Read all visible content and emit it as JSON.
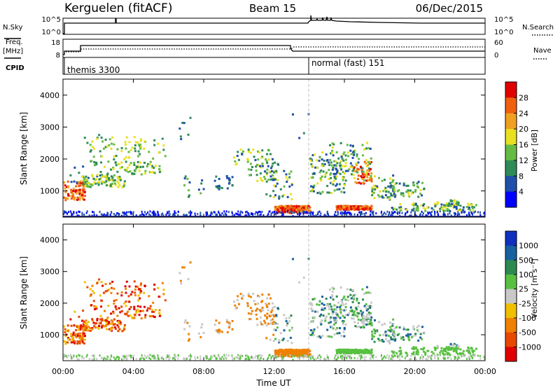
{
  "header": {
    "station": "Kerguelen (fitACF)",
    "beam": "Beam 15",
    "date": "06/Dec/2015"
  },
  "panel_labels": {
    "nsky": "N.Sky",
    "nsearch": "N.Search",
    "freq_top": "Freq.",
    "freq_unit": "[MHz]",
    "nave": "Nave",
    "cpid": "CPID",
    "nsky_ticks": [
      "10^5",
      "10^0"
    ],
    "nsearch_ticks": [
      "10^5",
      "10^0"
    ],
    "freq_ticks": [
      "18",
      "8"
    ],
    "nave_ticks": [
      "60",
      "0"
    ]
  },
  "cpid_modes": [
    {
      "label": "themis 3300",
      "start_hour": 0
    },
    {
      "label": "normal (fast) 151",
      "start_hour": 14
    }
  ],
  "colors": {
    "power_scale": [
      "#0000ff",
      "#1f4faa",
      "#2e8b57",
      "#66bb44",
      "#e8e020",
      "#f0a020",
      "#f06010",
      "#e00000"
    ],
    "velocity_scale": [
      "#1030c0",
      "#1860a0",
      "#2c8a50",
      "#58c040",
      "#c8c8c8",
      "#f0c000",
      "#f08000",
      "#e84800",
      "#e00000"
    ]
  },
  "chart_data": [
    {
      "type": "heatmap",
      "title": "Power",
      "ylabel": "Slant Range [km]",
      "xlabel": "",
      "xlim_hours": [
        0,
        24
      ],
      "ylim_km": [
        180,
        4500
      ],
      "yticks": [
        1000,
        2000,
        3000,
        4000
      ],
      "colorbar_label": "Power [dB]",
      "colorbar_ticks": [
        "4",
        "8",
        "12",
        "16",
        "20",
        "24",
        "28"
      ],
      "colorbar_range": [
        0,
        32
      ]
    },
    {
      "type": "heatmap",
      "title": "Velocity",
      "ylabel": "Slant Range [km]",
      "xlabel": "Time UT",
      "xlim_hours": [
        0,
        24
      ],
      "ylim_km": [
        180,
        4500
      ],
      "yticks": [
        1000,
        2000,
        3000,
        4000
      ],
      "xticks": [
        "00:00",
        "04:00",
        "08:00",
        "12:00",
        "16:00",
        "20:00",
        "00:00"
      ],
      "colorbar_label": "Velocity [m s⁻¹]",
      "colorbar_ticks": [
        "1000",
        "500",
        "100",
        "25",
        "-25",
        "-100",
        "-500",
        "-1000"
      ]
    }
  ]
}
